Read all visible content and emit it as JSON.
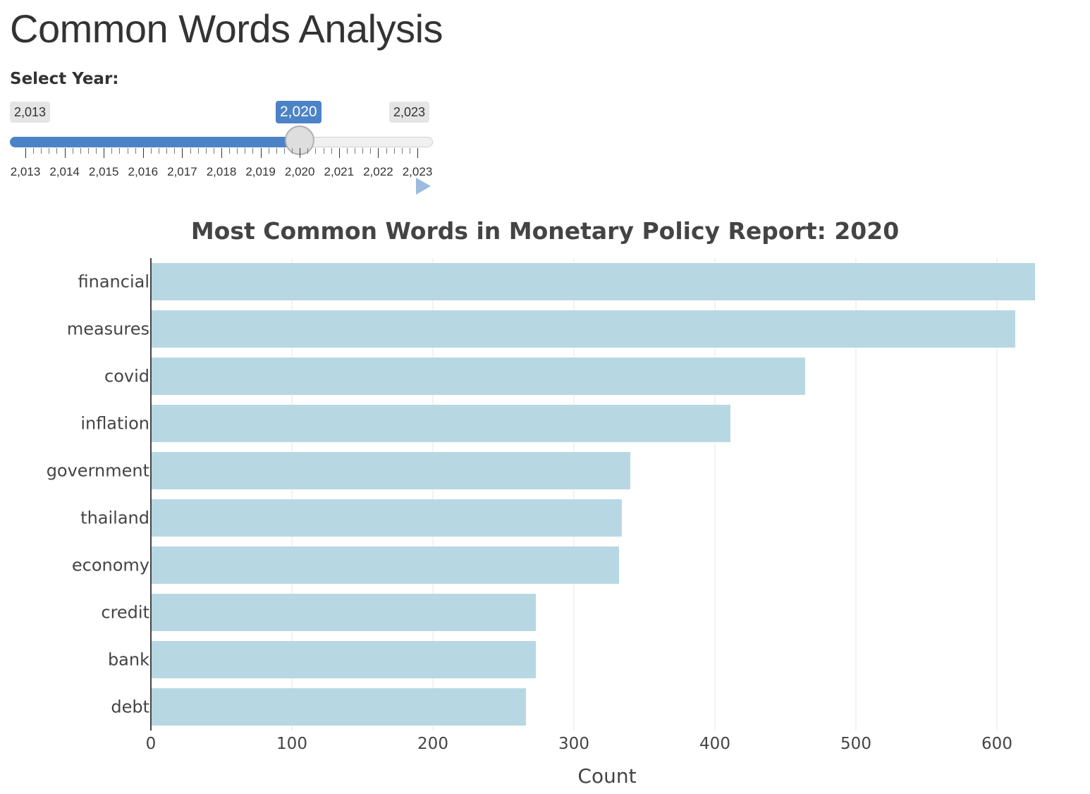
{
  "page": {
    "title": "Common Words Analysis"
  },
  "year_slider": {
    "label": "Select Year:",
    "min_label": "2,013",
    "max_label": "2,023",
    "selected_label": "2,020",
    "min": 2013,
    "max": 2023,
    "value": 2020,
    "tick_labels": [
      "2,013",
      "2,014",
      "2,015",
      "2,016",
      "2,017",
      "2,018",
      "2,019",
      "2,020",
      "2,021",
      "2,022",
      "2,023"
    ],
    "fill_color": "#4c83c6",
    "play_icon": "play-icon"
  },
  "chart_data": {
    "type": "bar",
    "orientation": "horizontal",
    "title": "Most Common Words in Monetary Policy Report: 2020",
    "xlabel": "Count",
    "ylabel": "",
    "categories": [
      "financial",
      "measures",
      "covid",
      "inflation",
      "government",
      "thailand",
      "economy",
      "credit",
      "bank",
      "debt"
    ],
    "values": [
      627,
      613,
      464,
      411,
      340,
      334,
      332,
      273,
      273,
      266
    ],
    "xlim": [
      0,
      637
    ],
    "x_ticks": [
      0,
      100,
      200,
      300,
      400,
      500,
      600
    ],
    "grid": true,
    "bar_color": "#b7d8e3"
  }
}
